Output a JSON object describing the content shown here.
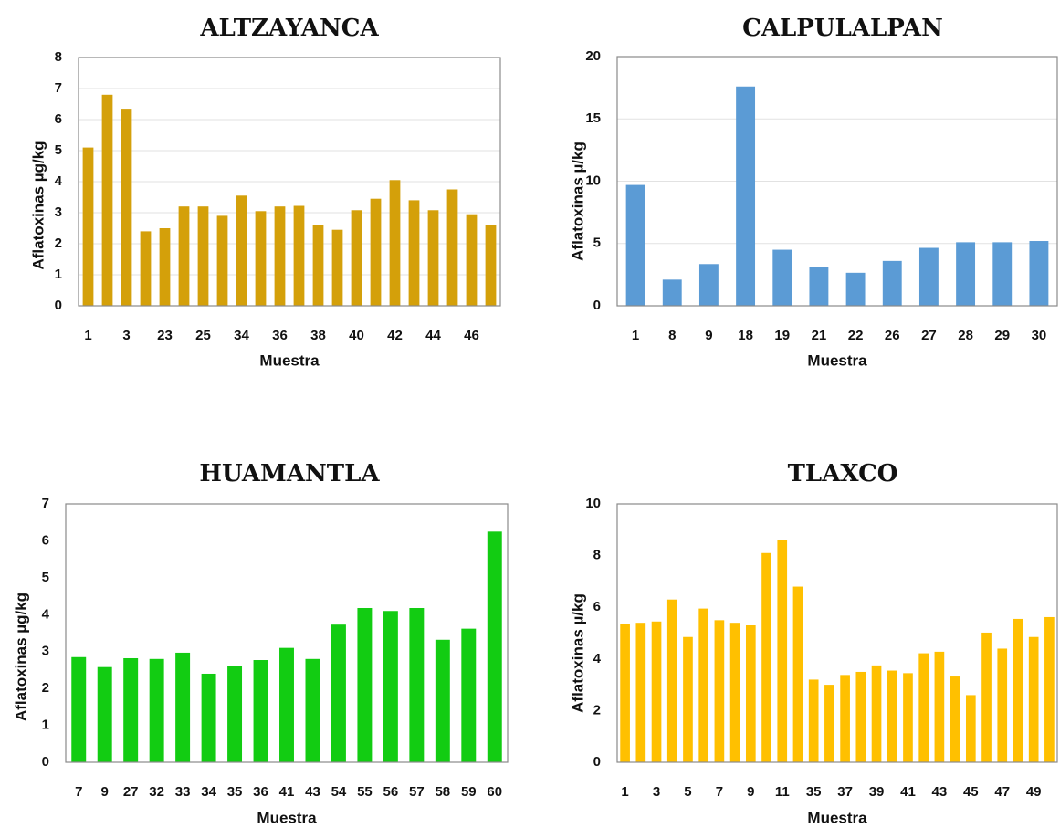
{
  "chart_data": [
    {
      "type": "bar",
      "title": "ALTZAYANCA",
      "xlabel": "Muestra",
      "ylabel": "Aflatoxinas µg/kg",
      "ylim": [
        0,
        8
      ],
      "yticks": [
        0,
        1,
        2,
        3,
        4,
        5,
        6,
        7,
        8
      ],
      "color": "#D4A00A",
      "grid": true,
      "categories": [
        "1",
        "2",
        "3",
        "22",
        "23",
        "24",
        "25",
        "33",
        "34",
        "35",
        "36",
        "37",
        "38",
        "39",
        "40",
        "41",
        "42",
        "43",
        "44",
        "45",
        "46",
        "47"
      ],
      "tick_labels": [
        "1",
        "",
        "3",
        "",
        "23",
        "",
        "25",
        "",
        "34",
        "",
        "36",
        "",
        "38",
        "",
        "40",
        "",
        "42",
        "",
        "44",
        "",
        "46",
        ""
      ],
      "values": [
        5.1,
        6.8,
        6.35,
        2.4,
        2.5,
        3.2,
        3.2,
        2.9,
        3.55,
        3.05,
        3.2,
        3.22,
        2.6,
        2.45,
        3.08,
        3.45,
        4.05,
        3.4,
        3.08,
        3.75,
        2.95,
        2.6
      ]
    },
    {
      "type": "bar",
      "title": "CALPULALPAN",
      "xlabel": "Muestra",
      "ylabel": "Aflatoxinas µ/kg",
      "ylim": [
        0,
        20
      ],
      "yticks": [
        0,
        5,
        10,
        15,
        20
      ],
      "color": "#5B9BD5",
      "grid": true,
      "categories": [
        "1",
        "8",
        "9",
        "18",
        "19",
        "21",
        "22",
        "26",
        "27",
        "28",
        "29",
        "30"
      ],
      "tick_labels": [
        "1",
        "8",
        "9",
        "18",
        "19",
        "21",
        "22",
        "26",
        "27",
        "28",
        "29",
        "30"
      ],
      "values": [
        9.7,
        2.1,
        3.35,
        17.6,
        4.5,
        3.15,
        2.65,
        3.6,
        4.65,
        5.1,
        5.1,
        5.2
      ]
    },
    {
      "type": "bar",
      "title": "HUAMANTLA",
      "xlabel": "Muestra",
      "ylabel": "Aflatoxinas µg/kg",
      "ylim": [
        0,
        7
      ],
      "yticks": [
        0,
        1,
        2,
        3,
        4,
        5,
        6,
        7
      ],
      "color": "#12CC12",
      "grid": false,
      "categories": [
        "7",
        "9",
        "27",
        "32",
        "33",
        "34",
        "35",
        "36",
        "41",
        "43",
        "54",
        "55",
        "56",
        "57",
        "58",
        "59",
        "60"
      ],
      "tick_labels": [
        "7",
        "9",
        "27",
        "32",
        "33",
        "34",
        "35",
        "36",
        "41",
        "43",
        "54",
        "55",
        "56",
        "57",
        "58",
        "59",
        "60"
      ],
      "values": [
        2.85,
        2.58,
        2.82,
        2.8,
        2.97,
        2.4,
        2.62,
        2.77,
        3.1,
        2.8,
        3.73,
        4.18,
        4.1,
        4.18,
        3.32,
        3.62,
        6.25
      ]
    },
    {
      "type": "bar",
      "title": "TLAXCO",
      "xlabel": "Muestra",
      "ylabel": "Aflatoxinas µ/kg",
      "ylim": [
        0,
        10
      ],
      "yticks": [
        0,
        2,
        4,
        6,
        8,
        10
      ],
      "color": "#FFC000",
      "grid": false,
      "categories": [
        "1",
        "2",
        "3",
        "4",
        "5",
        "6",
        "7",
        "8",
        "9",
        "10",
        "11",
        "12",
        "35",
        "36",
        "37",
        "38",
        "39",
        "40",
        "41",
        "42",
        "43",
        "44",
        "45",
        "46",
        "47",
        "48",
        "49",
        "50"
      ],
      "tick_labels": [
        "1",
        "",
        "3",
        "",
        "5",
        "",
        "7",
        "",
        "9",
        "",
        "11",
        "",
        "35",
        "",
        "37",
        "",
        "39",
        "",
        "41",
        "",
        "43",
        "",
        "45",
        "",
        "47",
        "",
        "49",
        ""
      ],
      "values": [
        5.35,
        5.4,
        5.45,
        6.3,
        4.85,
        5.95,
        5.5,
        5.4,
        5.3,
        8.1,
        8.6,
        6.8,
        3.2,
        3.0,
        3.38,
        3.5,
        3.75,
        3.55,
        3.45,
        4.22,
        4.28,
        3.32,
        2.6,
        5.02,
        4.4,
        5.55,
        4.85,
        5.62
      ]
    }
  ]
}
